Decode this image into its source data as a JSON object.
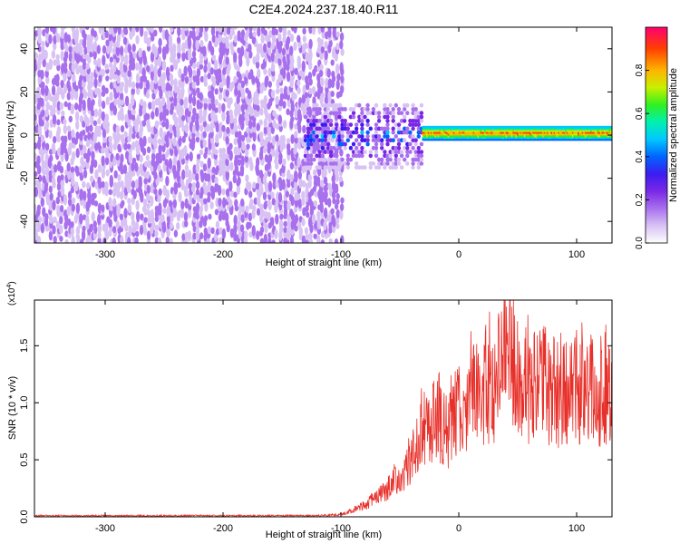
{
  "title": "C2E4.2024.237.18.40.R11",
  "colors": {
    "snr_line": "#e8302a",
    "axis": "#000000",
    "colormap": [
      "#ffffff",
      "#d8c2f4",
      "#a970ee",
      "#7a28e6",
      "#3c1cf0",
      "#0064ff",
      "#00c8ff",
      "#00f0b0",
      "#30f020",
      "#c8f000",
      "#ffb400",
      "#ff4000",
      "#ff006e"
    ]
  },
  "chart_data": [
    {
      "type": "heatmap",
      "xlabel": "Height of straight line (km)",
      "ylabel": "Frequency (Hz)",
      "xlim": [
        -360,
        130
      ],
      "ylim": [
        -50,
        50
      ],
      "x_ticks": [
        -300,
        -200,
        -100,
        0,
        100
      ],
      "x_tick_labels": [
        "-300",
        "-200",
        "-100",
        "0",
        "100"
      ],
      "y_ticks": [
        -40,
        -20,
        0,
        20,
        40
      ],
      "y_tick_labels": [
        "-40",
        "-20",
        "0",
        "20",
        "40"
      ],
      "colorbar": {
        "label": "Normalized spectral amplitude",
        "range": [
          0,
          1
        ],
        "ticks": [
          0.0,
          0.2,
          0.4,
          0.6,
          0.8
        ],
        "tick_labels": [
          "0.0",
          "0.2",
          "0.4",
          "0.6",
          "0.8"
        ]
      },
      "regions": [
        {
          "description": "noise",
          "x_range": [
            -360,
            -100
          ],
          "freq_range": [
            -50,
            50
          ],
          "amplitude_range": [
            0.05,
            0.2
          ]
        },
        {
          "description": "signal onset",
          "x_range": [
            -130,
            -30
          ],
          "freq_range": [
            -15,
            15
          ],
          "amplitude_range": [
            0.1,
            0.5
          ]
        },
        {
          "description": "narrow band",
          "x_range": [
            -30,
            130
          ],
          "freq_center": 1,
          "freq_halfwidth": 3,
          "amplitude_range": [
            0.4,
            1.0
          ]
        }
      ]
    },
    {
      "type": "line",
      "xlabel": "Height of straight line (km)",
      "ylabel": "SNR (10 * v/v)",
      "yscale_note": "(x10",
      "yscale_exp": "4",
      "xlim": [
        -360,
        130
      ],
      "ylim": [
        0,
        1.9
      ],
      "x_ticks": [
        -300,
        -200,
        -100,
        0,
        100
      ],
      "x_tick_labels": [
        "-300",
        "-200",
        "-100",
        "0",
        "100"
      ],
      "y_ticks": [
        0.0,
        0.5,
        1.0,
        1.5
      ],
      "y_tick_labels": [
        "0.0",
        "0.5",
        "1.0",
        "1.5"
      ],
      "series": [
        {
          "x": [
            -360,
            -300,
            -200,
            -120,
            -100,
            -80,
            -60,
            -50,
            -40,
            -30,
            -20,
            -10,
            0,
            10,
            20,
            30,
            40,
            50,
            60,
            70,
            80,
            90,
            100,
            110,
            120,
            130
          ],
          "y": [
            0.01,
            0.01,
            0.01,
            0.01,
            0.02,
            0.1,
            0.25,
            0.35,
            0.5,
            0.75,
            0.85,
            0.75,
            0.95,
            1.05,
            1.1,
            1.15,
            1.35,
            1.25,
            1.1,
            1.2,
            1.1,
            1.05,
            1.15,
            1.05,
            1.05,
            1.1
          ]
        }
      ]
    }
  ]
}
